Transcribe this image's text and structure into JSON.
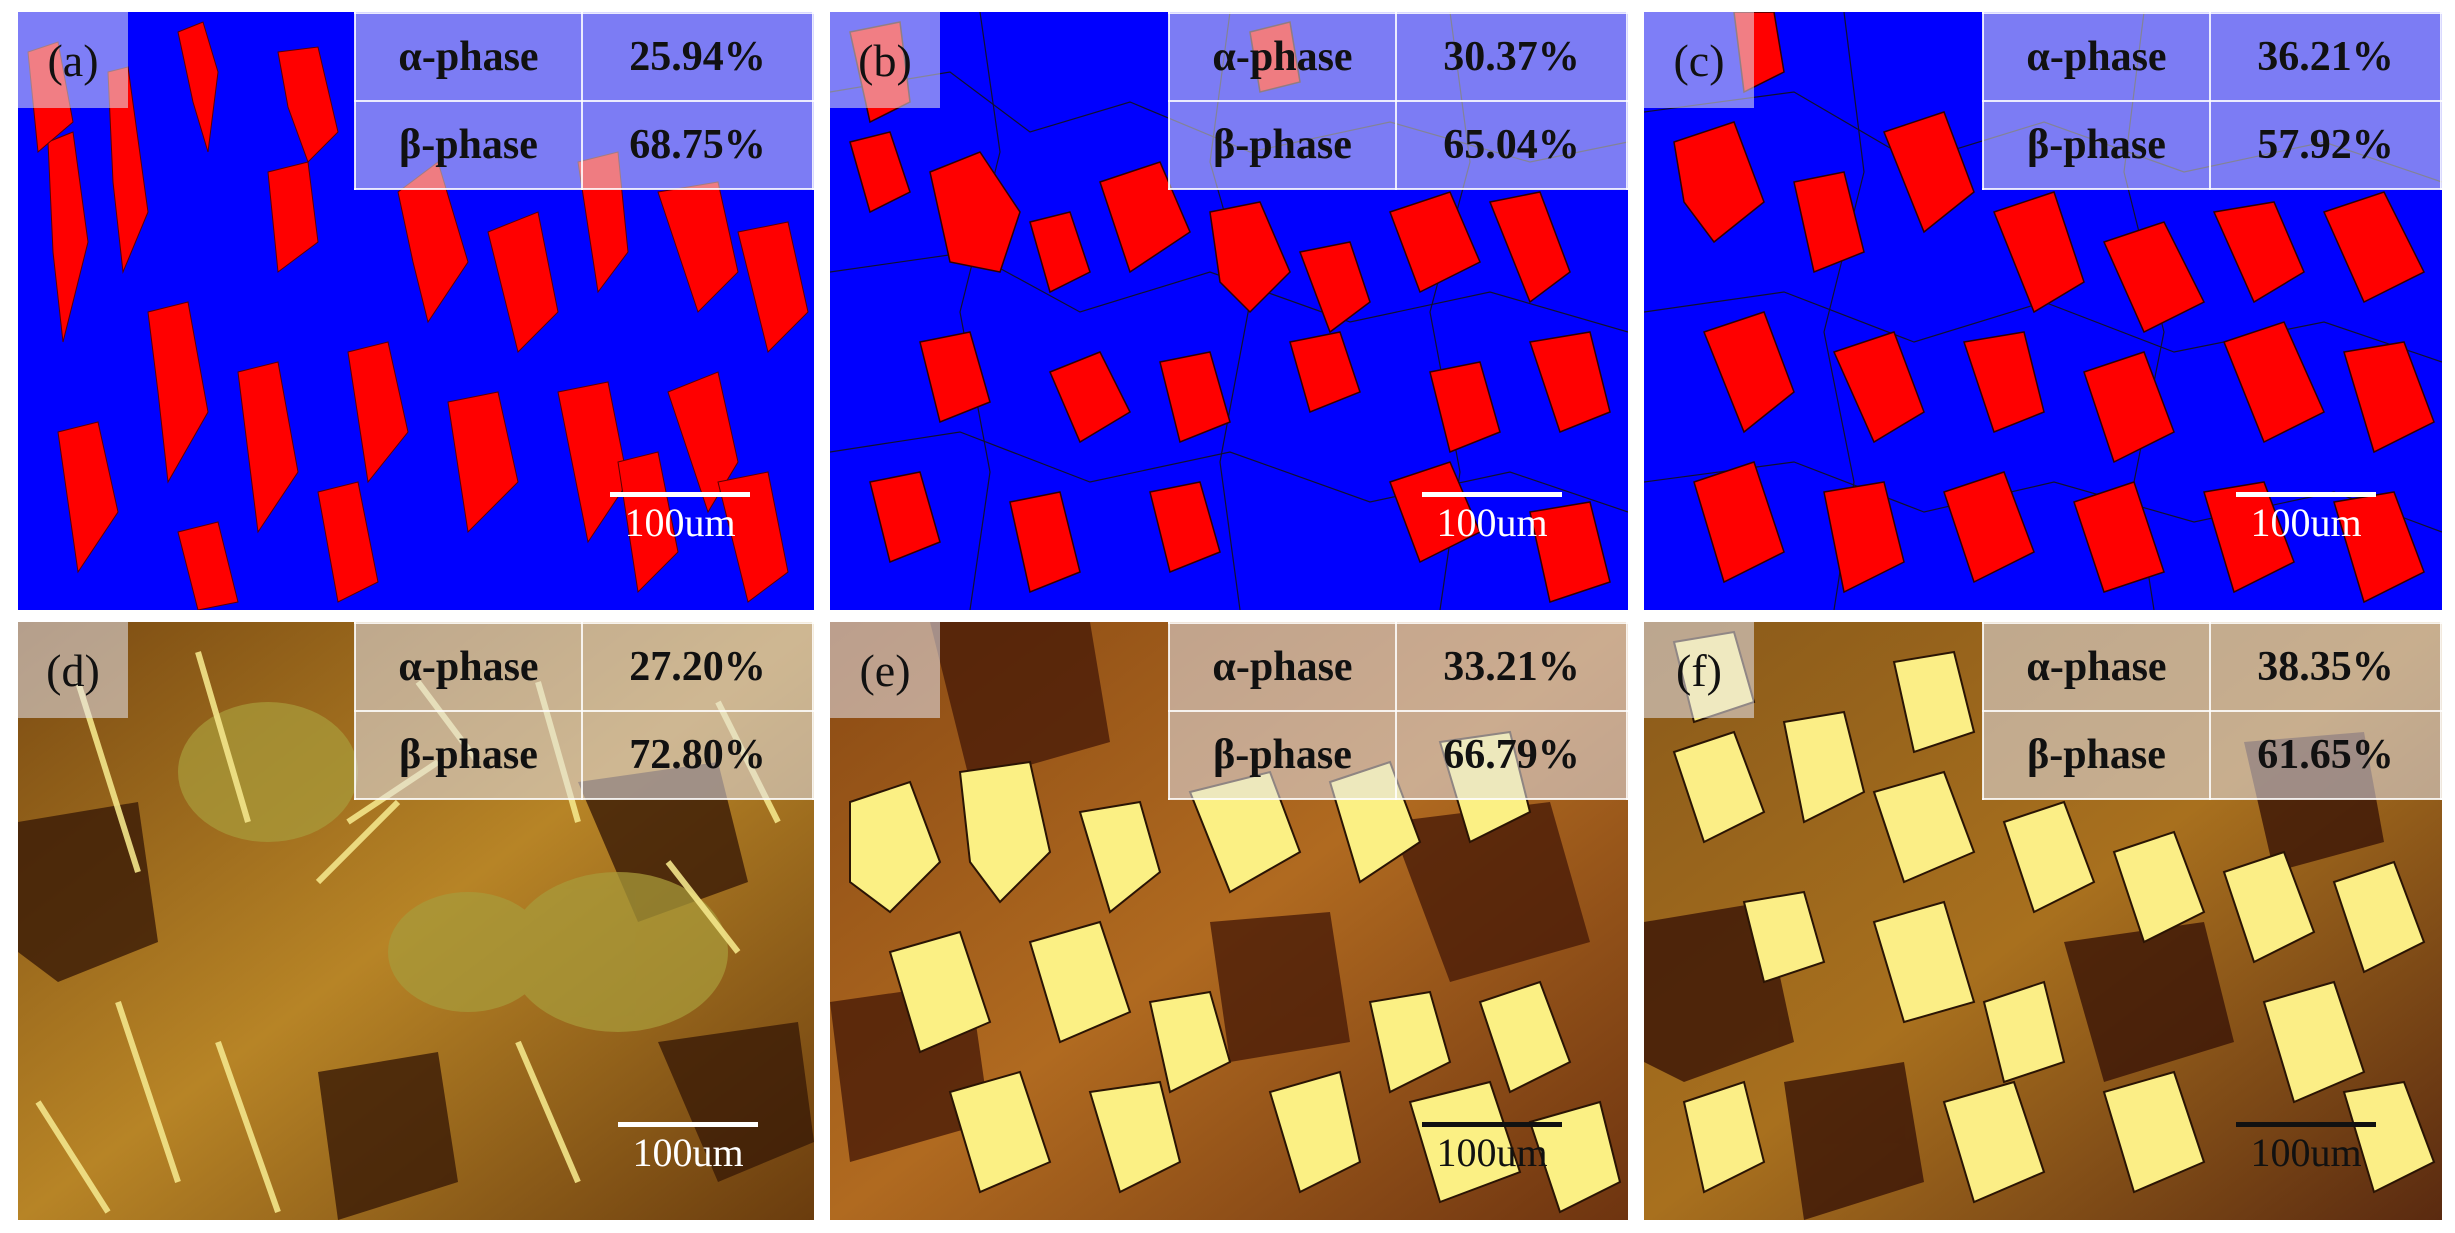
{
  "panels": [
    {
      "label": "(a)",
      "alpha_label": "α-phase",
      "alpha_value": "25.94%",
      "beta_label": "β-phase",
      "beta_value": "68.75%",
      "scale_label": "100um",
      "style": "segmented"
    },
    {
      "label": "(b)",
      "alpha_label": "α-phase",
      "alpha_value": "30.37%",
      "beta_label": "β-phase",
      "beta_value": "65.04%",
      "scale_label": "100um",
      "style": "segmented"
    },
    {
      "label": "(c)",
      "alpha_label": "α-phase",
      "alpha_value": "36.21%",
      "beta_label": "β-phase",
      "beta_value": "57.92%",
      "scale_label": "100um",
      "style": "segmented"
    },
    {
      "label": "(d)",
      "alpha_label": "α-phase",
      "alpha_value": "27.20%",
      "beta_label": "β-phase",
      "beta_value": "72.80%",
      "scale_label": "100um",
      "style": "micrograph"
    },
    {
      "label": "(e)",
      "alpha_label": "α-phase",
      "alpha_value": "33.21%",
      "beta_label": "β-phase",
      "beta_value": "66.79%",
      "scale_label": "100um",
      "style": "micrograph"
    },
    {
      "label": "(f)",
      "alpha_label": "α-phase",
      "alpha_value": "38.35%",
      "beta_label": "β-phase",
      "beta_value": "61.65%",
      "scale_label": "100um",
      "style": "micrograph"
    }
  ],
  "colors": {
    "beta_segmented": "#0000ff",
    "alpha_segmented": "#ff0000",
    "micro_dark": "#5a2a0a",
    "micro_mid": "#a8741c",
    "micro_light": "#f6ec7a"
  }
}
